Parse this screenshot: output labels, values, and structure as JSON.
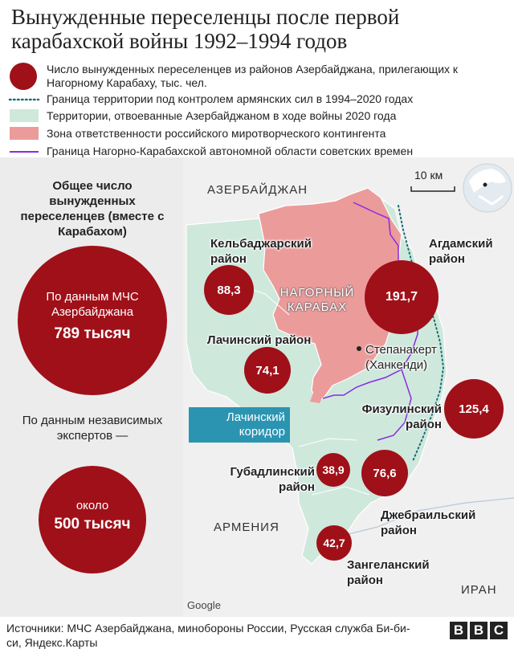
{
  "title": "Вынужденные переселенцы после первой карабахской войны 1992–1994 годов",
  "legend": [
    {
      "icon": "circle-icon",
      "text": "Число вынужденных переселенцев из районов Азербайджана, прилегающих к Нагорному Карабаху, тыс. чел."
    },
    {
      "icon": "dotted-line-icon",
      "text": "Граница территории под контролем армянских сил в 1994–2020 годах"
    },
    {
      "icon": "green-area-icon",
      "text": "Территории, отвоеванные Азербайджаном в ходе войны 2020 года"
    },
    {
      "icon": "pink-area-icon",
      "text": "Зона ответственности российского миротворческого контингента"
    },
    {
      "icon": "purple-line-icon",
      "text": "Граница Нагорно-Карабахской автономной области советских времен"
    }
  ],
  "left_panel": {
    "heading": "Общее число вынужденных переселенцев (вместе с Карабахом)",
    "ministry": {
      "source": "По данным МЧС Азербайджана",
      "value": "789 тысяч"
    },
    "experts_label": "По данным независимых экспертов —",
    "experts": {
      "prefix": "около",
      "value": "500 тысяч"
    }
  },
  "map": {
    "countries": {
      "azerbaijan": "АЗЕРБАЙДЖАН",
      "armenia": "АРМЕНИЯ",
      "iran": "ИРАН"
    },
    "nk_label": "НАГОРНЫЙ КАРАБАХ",
    "stepanakert": "Степанакерт (Ханкенди)",
    "corridor": "Лачинский коридор",
    "scale": "10 км",
    "attribution": "Google",
    "districts": [
      {
        "name": "Кельбаджарский район",
        "value": "88,3"
      },
      {
        "name": "Агдамский район",
        "value": "191,7"
      },
      {
        "name": "Лачинский район",
        "value": "74,1"
      },
      {
        "name": "Физулинский район",
        "value": "125,4"
      },
      {
        "name": "Губадлинский район",
        "value": "38,9"
      },
      {
        "name": "Джебраильский район",
        "value": "76,6"
      },
      {
        "name": "Зангеланский район",
        "value": "42,7"
      }
    ]
  },
  "sources": "Источники: МЧС Азербайджана, минобороны России, Русская служба Би-би-си, Яндекс.Карты",
  "logo": [
    "B",
    "B",
    "C"
  ],
  "colors": {
    "circle": "#a01019",
    "green_area": "#cfe8dc",
    "pink_area": "#ec9b9b",
    "dotted_border": "#1a6b7a",
    "purple_border": "#8a2be2",
    "corridor": "#2b94b1"
  }
}
